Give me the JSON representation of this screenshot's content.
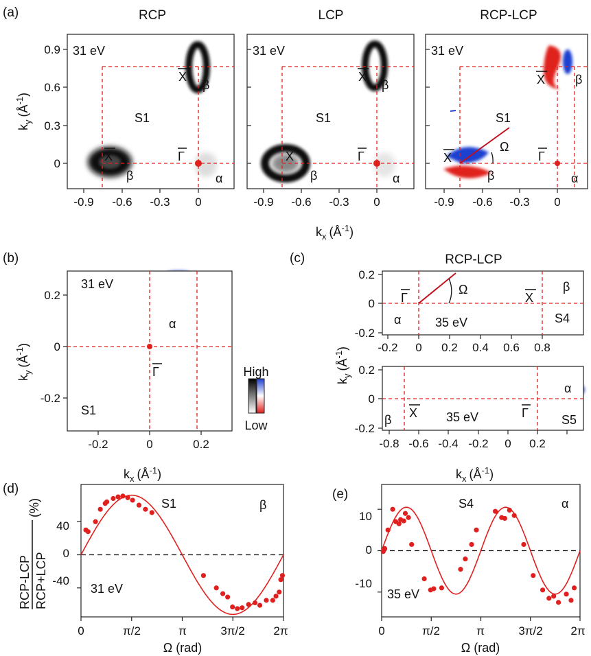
{
  "figure": {
    "panel_letters": [
      "(a)",
      "(b)",
      "(c)",
      "(d)",
      "(e)"
    ],
    "a_titles": [
      "RCP",
      "LCP",
      "RCP-LCP"
    ],
    "c_title": "RCP-LCP",
    "colorbar": {
      "high": "High",
      "low": "Low"
    },
    "labels": {
      "ky": "k",
      "ky_sub": "y",
      "k_unit": "(Å",
      "k_unit_exp": "-1",
      "kx": "k",
      "kx_sub": "x",
      "omega_axis": "Ω (rad)",
      "ratio_num": "RCP-LCP",
      "ratio_den": "RCP+LCP",
      "percent": "(%)"
    },
    "annotations": {
      "e31": "31 eV",
      "e35": "35 eV",
      "S1": "S1",
      "S4": "S4",
      "S5": "S5",
      "X": "X",
      "G": "Γ",
      "alpha": "α",
      "beta": "β",
      "Omega": "Ω"
    },
    "ticks": {
      "a_x": [
        "-0.9",
        "-0.6",
        "-0.3",
        "0"
      ],
      "a_y": [
        "0.9",
        "0.6",
        "0.3",
        "0"
      ],
      "b_x": [
        "-0.2",
        "0",
        "0.2"
      ],
      "b_y": [
        "0.2",
        "0",
        "-0.2"
      ],
      "c_top_x": [
        "-0.2",
        "0",
        "0.2",
        "0.4",
        "0.6",
        "0.8"
      ],
      "c_top_y": [
        "0.2",
        "0",
        "-0.2"
      ],
      "c_bot_x": [
        "-0.8",
        "-0.6",
        "-0.4",
        "-0.2",
        "0",
        "0.2"
      ],
      "c_bot_y": [
        "0.2",
        "0",
        "-0.2"
      ],
      "d_y": [
        "40",
        "0",
        "-40"
      ],
      "e_y": [
        "10",
        "0",
        "-10"
      ],
      "omega_x": [
        "0",
        "π/2",
        "π",
        "3π/2",
        "2π"
      ]
    },
    "colors": {
      "red": "#e0201e",
      "blue": "#2244cc",
      "black": "#111111"
    }
  },
  "chart_data": [
    {
      "id": "d",
      "type": "scatter",
      "title": "S1",
      "series_label": "β",
      "photon_energy": "31 eV",
      "xlabel": "Ω (rad)",
      "ylabel": "RCP-LCP / RCP+LCP (%)",
      "xlim": [
        0,
        6.2832
      ],
      "ylim": [
        -75,
        85
      ],
      "fit": {
        "form": "A*sin(Ω)",
        "A": 72
      },
      "points": [
        [
          0.15,
          30
        ],
        [
          0.22,
          28
        ],
        [
          0.45,
          40
        ],
        [
          0.6,
          55
        ],
        [
          0.75,
          62
        ],
        [
          0.8,
          64
        ],
        [
          1.0,
          68
        ],
        [
          1.15,
          70
        ],
        [
          1.3,
          71
        ],
        [
          1.45,
          69
        ],
        [
          1.6,
          66
        ],
        [
          1.8,
          60
        ],
        [
          2.0,
          55
        ],
        [
          2.2,
          51
        ],
        [
          3.8,
          -25
        ],
        [
          4.2,
          -40
        ],
        [
          4.4,
          -47
        ],
        [
          4.55,
          -51
        ],
        [
          4.7,
          -63
        ],
        [
          4.85,
          -65
        ],
        [
          5.0,
          -64
        ],
        [
          5.2,
          -60
        ],
        [
          5.4,
          -58
        ],
        [
          5.55,
          -61
        ],
        [
          5.75,
          -55
        ],
        [
          5.95,
          -55
        ],
        [
          6.05,
          -50
        ],
        [
          6.15,
          -45
        ],
        [
          6.2,
          -30
        ],
        [
          6.25,
          -25
        ]
      ]
    },
    {
      "id": "e",
      "type": "scatter",
      "title": "S4",
      "series_label": "α",
      "photon_energy": "35 eV",
      "xlabel": "Ω (rad)",
      "ylabel": "",
      "xlim": [
        0,
        6.2832
      ],
      "ylim": [
        -16,
        16
      ],
      "fit": {
        "form": "A*sin(2Ω)",
        "A": 10.5
      },
      "points": [
        [
          0.05,
          -0.2
        ],
        [
          0.1,
          0.5
        ],
        [
          0.2,
          5
        ],
        [
          0.35,
          10
        ],
        [
          0.45,
          7
        ],
        [
          0.55,
          6.5
        ],
        [
          0.6,
          7.5
        ],
        [
          0.7,
          7.2
        ],
        [
          0.75,
          9
        ],
        [
          0.85,
          8
        ],
        [
          0.95,
          1.5
        ],
        [
          1.35,
          -6.8
        ],
        [
          1.55,
          -9.5
        ],
        [
          1.65,
          -9.2
        ],
        [
          1.9,
          -9
        ],
        [
          2.5,
          -4.5
        ],
        [
          2.65,
          -2
        ],
        [
          2.85,
          1.5
        ],
        [
          3.0,
          5
        ],
        [
          3.6,
          9.5
        ],
        [
          3.8,
          8
        ],
        [
          3.9,
          7.8
        ],
        [
          4.05,
          9.8
        ],
        [
          4.2,
          8.5
        ],
        [
          4.5,
          1.5
        ],
        [
          4.8,
          -6
        ],
        [
          5.1,
          -9.5
        ],
        [
          5.3,
          -11.5
        ],
        [
          5.45,
          -11
        ],
        [
          5.6,
          -12.5
        ],
        [
          5.85,
          -10.5
        ],
        [
          6.0,
          -12
        ],
        [
          6.1,
          -9
        ]
      ]
    }
  ]
}
